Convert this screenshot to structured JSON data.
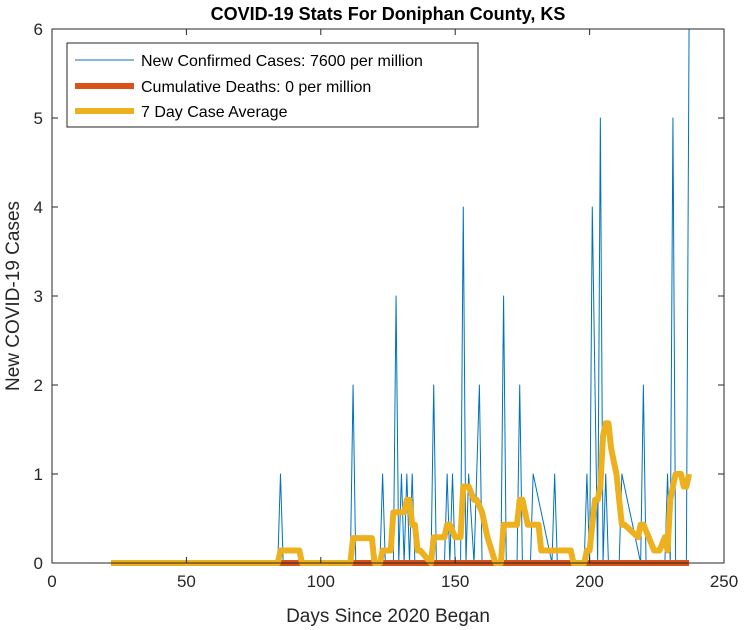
{
  "chart_data": {
    "type": "line",
    "title": "COVID-19 Stats For Doniphan County, KS",
    "xlabel": "Days Since 2020 Began",
    "ylabel": "New COVID-19 Cases",
    "xlim": [
      0,
      250
    ],
    "ylim": [
      0,
      6
    ],
    "xticks": [
      0,
      50,
      100,
      150,
      200,
      250
    ],
    "yticks": [
      0,
      1,
      2,
      3,
      4,
      5,
      6
    ],
    "grid": false,
    "legend_position": "top-left",
    "series": [
      {
        "name": "New Confirmed Cases: 7600 per million",
        "color": "#0072BD",
        "line_style": "thin",
        "x": [
          22,
          84,
          85,
          86,
          111,
          112,
          113,
          122,
          123,
          124,
          127,
          128,
          129,
          130,
          131,
          132,
          133,
          134,
          135,
          141,
          142,
          143,
          146,
          147,
          148,
          149,
          150,
          152,
          153,
          154,
          155,
          157,
          158,
          159,
          160,
          167,
          168,
          169,
          173,
          174,
          175,
          178,
          179,
          186,
          187,
          188,
          198,
          199,
          200,
          201,
          202,
          203,
          204,
          205,
          206,
          207,
          211,
          212,
          219,
          220,
          221,
          228,
          229,
          230,
          231,
          232,
          236,
          237
        ],
        "y": [
          0,
          0,
          1,
          0,
          0,
          2,
          0,
          0,
          1,
          0,
          0,
          3,
          0,
          1,
          0,
          1,
          0,
          1,
          0,
          0,
          2,
          0,
          0,
          1,
          0,
          1,
          0,
          0,
          4,
          0,
          1,
          0,
          1,
          2,
          0,
          0,
          3,
          0,
          0,
          2,
          0,
          0,
          1,
          0,
          1,
          0,
          0,
          1,
          0,
          4,
          2,
          0,
          5,
          0,
          1,
          0,
          0,
          1,
          0,
          2,
          0,
          0,
          1,
          0,
          5,
          0,
          0,
          6
        ]
      },
      {
        "name": "Cumulative Deaths: 0 per million",
        "color": "#D95319",
        "line_style": "thick",
        "x": [
          22,
          237
        ],
        "y": [
          0,
          0
        ]
      },
      {
        "name": "7 Day Case Average",
        "color": "#EDB120",
        "line_style": "thick",
        "x": [
          22,
          84,
          85,
          92,
          93,
          111,
          112,
          119,
          120,
          122,
          123,
          126,
          127,
          128,
          129,
          130,
          131,
          132,
          133,
          134,
          135,
          136,
          137,
          141,
          142,
          146,
          147,
          148,
          150,
          152,
          153,
          155,
          157,
          158,
          160,
          161,
          162,
          165,
          167,
          168,
          169,
          173,
          174,
          175,
          177,
          178,
          179,
          181,
          182,
          186,
          187,
          193,
          194,
          198,
          199,
          200,
          201,
          202,
          203,
          204,
          205,
          206,
          207,
          208,
          209,
          210,
          211,
          212,
          213,
          218,
          219,
          220,
          222,
          224,
          226,
          228,
          229,
          230,
          231,
          232,
          234,
          235,
          236,
          237
        ],
        "y": [
          0,
          0,
          0.14,
          0.14,
          0,
          0,
          0.28,
          0.28,
          0,
          0,
          0.14,
          0.14,
          0.57,
          0.57,
          0.57,
          0.57,
          0.57,
          0.71,
          0.71,
          0.43,
          0.43,
          0.14,
          0.14,
          0,
          0.29,
          0.29,
          0.43,
          0.43,
          0.29,
          0.29,
          0.86,
          0.86,
          0.71,
          0.71,
          0.57,
          0.43,
          0.29,
          0,
          0,
          0.43,
          0.43,
          0.43,
          0.71,
          0.71,
          0.43,
          0.43,
          0.43,
          0.43,
          0.14,
          0.14,
          0.14,
          0.14,
          0,
          0,
          0.14,
          0.14,
          0.43,
          0.71,
          0.71,
          0.86,
          1.43,
          1.57,
          1.57,
          1.29,
          1.14,
          1.0,
          0.71,
          0.43,
          0.43,
          0.29,
          0.43,
          0.43,
          0.29,
          0.14,
          0.14,
          0.29,
          0.14,
          0.71,
          0.86,
          1.0,
          1.0,
          0.86,
          0.86,
          1.0
        ]
      }
    ]
  }
}
